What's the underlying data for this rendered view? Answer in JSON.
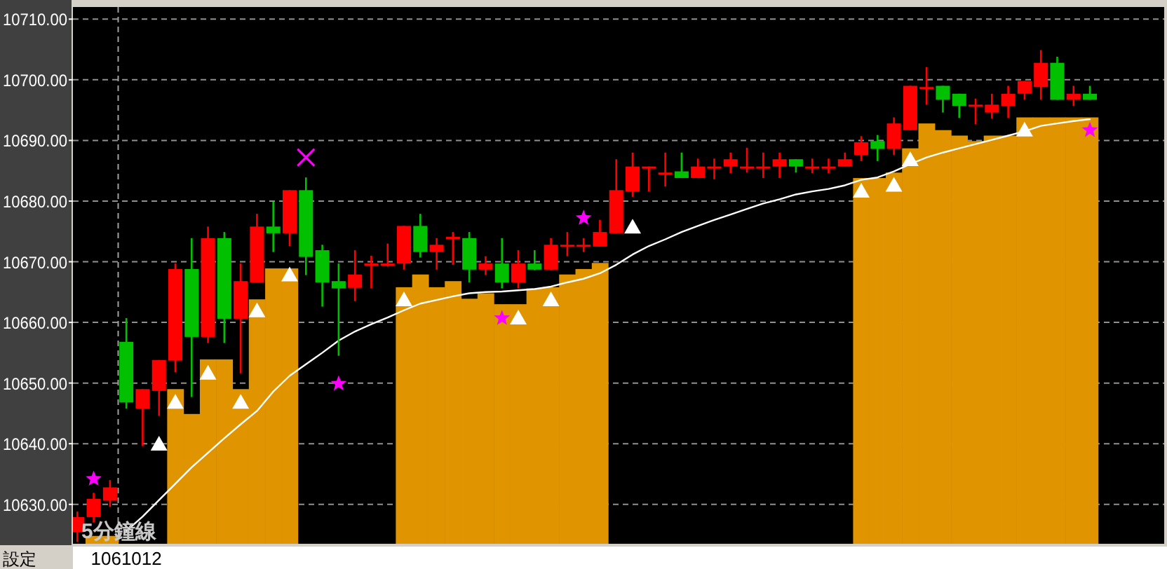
{
  "chart_data": {
    "type": "candlestick",
    "categories": [
      null,
      null,
      null,
      "1061012",
      null,
      null,
      null,
      null,
      null,
      null,
      null,
      null,
      null,
      null,
      null,
      null,
      null,
      null,
      null,
      null,
      null,
      null,
      null,
      null,
      null,
      null,
      null,
      null,
      null,
      null,
      null,
      null,
      null,
      null,
      null,
      null,
      null,
      null,
      null,
      null,
      null,
      null,
      null,
      null,
      null,
      null,
      null,
      null,
      null,
      null,
      null,
      null,
      null,
      null,
      null,
      null,
      null,
      null,
      null,
      null,
      null,
      null,
      null
    ],
    "ohlc": [
      [
        10625.4,
        10628.8,
        10623.8,
        10627.9
      ],
      [
        10627.9,
        10631.9,
        10627.0,
        10630.9
      ],
      [
        10630.6,
        10634.0,
        10629.6,
        10632.8
      ],
      [
        10656.8,
        10660.7,
        10645.8,
        10646.8
      ],
      [
        10645.8,
        10649.0,
        10639.6,
        10649.0
      ],
      [
        10648.7,
        10653.8,
        10644.6,
        10653.8
      ],
      [
        10653.7,
        10669.7,
        10651.8,
        10668.8
      ],
      [
        10668.8,
        10673.9,
        10647.7,
        10657.6
      ],
      [
        10657.6,
        10675.8,
        10656.6,
        10673.9
      ],
      [
        10673.9,
        10674.9,
        10656.6,
        10660.6
      ],
      [
        10660.6,
        10669.7,
        10651.6,
        10666.8
      ],
      [
        10666.6,
        10677.9,
        10666.6,
        10675.8
      ],
      [
        10675.8,
        10679.9,
        10671.6,
        10674.7
      ],
      [
        10674.7,
        10681.8,
        10672.6,
        10681.8
      ],
      [
        10681.8,
        10683.9,
        10667.8,
        10670.8
      ],
      [
        10671.9,
        10672.8,
        10662.6,
        10666.6
      ],
      [
        10666.8,
        10669.7,
        10654.5,
        10665.6
      ],
      [
        10665.7,
        10671.9,
        10663.5,
        10667.9
      ],
      [
        10669.5,
        10671.0,
        10665.6,
        10669.7
      ],
      [
        10669.5,
        10673.0,
        10669.2,
        10669.7
      ],
      [
        10669.7,
        10675.9,
        10668.7,
        10675.9
      ],
      [
        10675.9,
        10677.9,
        10670.7,
        10671.6
      ],
      [
        10671.6,
        10673.9,
        10668.7,
        10672.8
      ],
      [
        10673.8,
        10674.9,
        10669.5,
        10674.1
      ],
      [
        10673.9,
        10674.9,
        10666.6,
        10668.7
      ],
      [
        10668.7,
        10670.9,
        10667.8,
        10669.7
      ],
      [
        10669.7,
        10673.9,
        10665.6,
        10666.6
      ],
      [
        10666.6,
        10671.9,
        10665.6,
        10669.7
      ],
      [
        10669.7,
        10671.9,
        10668.6,
        10668.7
      ],
      [
        10668.7,
        10673.9,
        10668.6,
        10672.8
      ],
      [
        10672.6,
        10674.9,
        10670.9,
        10672.8
      ],
      [
        10672.6,
        10673.9,
        10671.6,
        10672.8
      ],
      [
        10672.5,
        10676.9,
        10672.5,
        10674.9
      ],
      [
        10674.7,
        10686.9,
        10674.7,
        10681.8
      ],
      [
        10681.6,
        10688.0,
        10680.7,
        10685.7
      ],
      [
        10685.5,
        10685.7,
        10681.6,
        10685.7
      ],
      [
        10684.5,
        10688.0,
        10682.4,
        10684.7
      ],
      [
        10684.9,
        10688.0,
        10683.8,
        10683.8
      ],
      [
        10683.8,
        10687.0,
        10683.8,
        10685.7
      ],
      [
        10685.5,
        10687.0,
        10683.6,
        10685.7
      ],
      [
        10685.7,
        10688.0,
        10684.6,
        10686.9
      ],
      [
        10685.5,
        10688.8,
        10684.7,
        10685.7
      ],
      [
        10685.5,
        10688.0,
        10683.8,
        10685.7
      ],
      [
        10685.7,
        10688.0,
        10683.8,
        10686.9
      ],
      [
        10686.9,
        10686.9,
        10684.7,
        10685.7
      ],
      [
        10685.5,
        10687.0,
        10684.6,
        10685.7
      ],
      [
        10685.5,
        10687.0,
        10684.6,
        10685.7
      ],
      [
        10685.7,
        10688.0,
        10685.7,
        10686.9
      ],
      [
        10687.6,
        10690.7,
        10686.6,
        10689.7
      ],
      [
        10689.9,
        10690.9,
        10686.6,
        10688.6
      ],
      [
        10688.6,
        10693.8,
        10687.6,
        10692.8
      ],
      [
        10691.7,
        10699.0,
        10691.7,
        10699.0
      ],
      [
        10698.6,
        10702.1,
        10695.9,
        10698.8
      ],
      [
        10699.0,
        10699.0,
        10694.6,
        10696.7
      ],
      [
        10697.7,
        10697.7,
        10693.7,
        10695.7
      ],
      [
        10695.7,
        10696.9,
        10692.7,
        10695.9
      ],
      [
        10694.6,
        10697.7,
        10693.6,
        10695.9
      ],
      [
        10695.7,
        10699.0,
        10693.7,
        10697.7
      ],
      [
        10697.7,
        10699.8,
        10696.7,
        10699.8
      ],
      [
        10698.8,
        10704.9,
        10696.7,
        10702.8
      ],
      [
        10702.8,
        10703.8,
        10696.7,
        10696.7
      ],
      [
        10696.7,
        10699.0,
        10695.7,
        10697.7
      ],
      [
        10697.7,
        10699.0,
        10696.7,
        10696.7
      ]
    ],
    "colors": [
      "#ff0000",
      "#ff0000",
      "#ff0000",
      "#00c000",
      "#ff0000",
      "#ff0000",
      "#ff0000",
      "#00c000",
      "#ff0000",
      "#00c000",
      "#ff0000",
      "#ff0000",
      "#00c000",
      "#ff0000",
      "#00c000",
      "#00c000",
      "#00c000",
      "#ff0000",
      "#ff0000",
      "#ff0000",
      "#ff0000",
      "#00c000",
      "#ff0000",
      "#ff0000",
      "#00c000",
      "#ff0000",
      "#00c000",
      "#ff0000",
      "#00c000",
      "#ff0000",
      "#ff0000",
      "#ff0000",
      "#ff0000",
      "#ff0000",
      "#ff0000",
      "#ff0000",
      "#ff0000",
      "#00c000",
      "#ff0000",
      "#ff0000",
      "#ff0000",
      "#ff0000",
      "#ff0000",
      "#ff0000",
      "#00c000",
      "#ff0000",
      "#ff0000",
      "#ff0000",
      "#ff0000",
      "#00c000",
      "#ff0000",
      "#ff0000",
      "#ff0000",
      "#00c000",
      "#00c000",
      "#ff0000",
      "#ff0000",
      "#ff0000",
      "#ff0000",
      "#ff0000",
      "#00c000",
      "#ff0000",
      "#00c000"
    ],
    "series": [
      {
        "type": "bar",
        "color": "#e09400",
        "values": [
          null,
          10624.8,
          10624.8,
          null,
          null,
          null,
          10649.0,
          10644.9,
          10653.9,
          10653.9,
          10649.0,
          10663.8,
          10668.9,
          10668.9,
          null,
          null,
          null,
          null,
          null,
          null,
          10665.8,
          10667.9,
          10665.8,
          10666.8,
          10663.9,
          10664.8,
          10663.0,
          10663.0,
          10665.6,
          10665.8,
          10667.9,
          10668.8,
          10669.8,
          null,
          null,
          null,
          null,
          null,
          null,
          null,
          null,
          null,
          null,
          null,
          null,
          null,
          null,
          null,
          10683.8,
          10683.8,
          10684.7,
          10688.7,
          10692.8,
          10691.7,
          10690.8,
          10689.9,
          10690.8,
          10690.8,
          10693.8,
          10693.8,
          10693.8,
          10693.8,
          10693.8
        ]
      },
      {
        "type": "line",
        "color": "#ffffff",
        "marker": "none",
        "line_style": "solid",
        "values": [
          null,
          null,
          null,
          10625.6,
          10628.0,
          10630.7,
          10633.4,
          10636.1,
          10638.5,
          10640.9,
          10643.2,
          10645.4,
          10648.6,
          10651.2,
          10653.1,
          10655.0,
          10657.0,
          10658.5,
          10659.7,
          10660.8,
          10662.0,
          10663.1,
          10663.7,
          10664.3,
          10664.8,
          10665.0,
          10665.1,
          10665.3,
          10665.5,
          10665.9,
          10666.6,
          10667.2,
          10668.1,
          10669.5,
          10671.2,
          10672.6,
          10673.7,
          10674.9,
          10675.9,
          10676.9,
          10677.8,
          10678.7,
          10679.6,
          10680.3,
          10681.1,
          10681.6,
          10682.0,
          10682.6,
          10683.5,
          10683.9,
          10684.9,
          10686.1,
          10687.2,
          10688.0,
          10688.7,
          10689.4,
          10690.1,
          10690.8,
          10691.5,
          10692.4,
          10692.8,
          10693.2,
          10693.5
        ]
      },
      {
        "type": "scatter",
        "color": "#ffffff",
        "marker": "triangle",
        "values": [
          null,
          null,
          null,
          null,
          null,
          10639.9,
          10646.8,
          null,
          10651.6,
          null,
          10646.8,
          10661.9,
          null,
          10667.8,
          null,
          null,
          null,
          null,
          null,
          null,
          10663.7,
          null,
          null,
          null,
          null,
          null,
          null,
          10660.7,
          null,
          10663.7,
          null,
          null,
          null,
          null,
          10675.7,
          null,
          null,
          null,
          null,
          null,
          null,
          null,
          null,
          null,
          null,
          null,
          null,
          null,
          10681.6,
          null,
          10682.6,
          10686.8,
          null,
          null,
          null,
          null,
          null,
          null,
          10691.7,
          null,
          null,
          null,
          null
        ]
      },
      {
        "type": "scatter",
        "color": "#ff00ff",
        "marker": "star",
        "values": [
          null,
          10634.2,
          null,
          null,
          null,
          null,
          null,
          null,
          null,
          null,
          null,
          null,
          null,
          null,
          null,
          null,
          10649.9,
          null,
          null,
          null,
          null,
          null,
          null,
          null,
          null,
          null,
          10660.7,
          null,
          null,
          null,
          null,
          10677.2,
          null,
          null,
          null,
          null,
          null,
          null,
          null,
          null,
          null,
          null,
          null,
          null,
          null,
          null,
          null,
          null,
          null,
          null,
          null,
          null,
          null,
          null,
          null,
          null,
          null,
          null,
          null,
          null,
          null,
          null,
          10691.7
        ]
      },
      {
        "type": "scatter",
        "color": "#ff00ff",
        "marker": "cross",
        "values": [
          null,
          null,
          null,
          null,
          null,
          null,
          null,
          null,
          null,
          null,
          null,
          null,
          null,
          null,
          10687.2,
          null,
          null,
          null,
          null,
          null,
          null,
          null,
          null,
          null,
          null,
          null,
          null,
          null,
          null,
          null,
          null,
          null,
          null,
          null,
          null,
          null,
          null,
          null,
          null,
          null,
          null,
          null,
          null,
          null,
          null,
          null,
          null,
          null,
          null,
          null,
          null,
          null,
          null,
          null,
          null,
          null,
          null,
          null,
          null,
          null,
          null,
          null,
          null
        ]
      }
    ],
    "ylim": [
      10623.5,
      10712
    ],
    "yticks": [
      {
        "value": 10630,
        "label": "10630.00"
      },
      {
        "value": 10640,
        "label": "10640.00"
      },
      {
        "value": 10650,
        "label": "10650.00"
      },
      {
        "value": 10660,
        "label": "10660.00"
      },
      {
        "value": 10670,
        "label": "10670.00"
      },
      {
        "value": 10680,
        "label": "10680.00"
      },
      {
        "value": 10690,
        "label": "10690.00"
      },
      {
        "value": 10700,
        "label": "10700.00"
      },
      {
        "value": 10710,
        "label": "10710.00"
      }
    ],
    "grid": "y",
    "ref_lines": [
      {
        "axis": "x",
        "value": "1061012",
        "color": "#a0a0a0",
        "line_style": "dashed"
      }
    ],
    "annotations": [
      "5分鐘線",
      "設定"
    ]
  }
}
